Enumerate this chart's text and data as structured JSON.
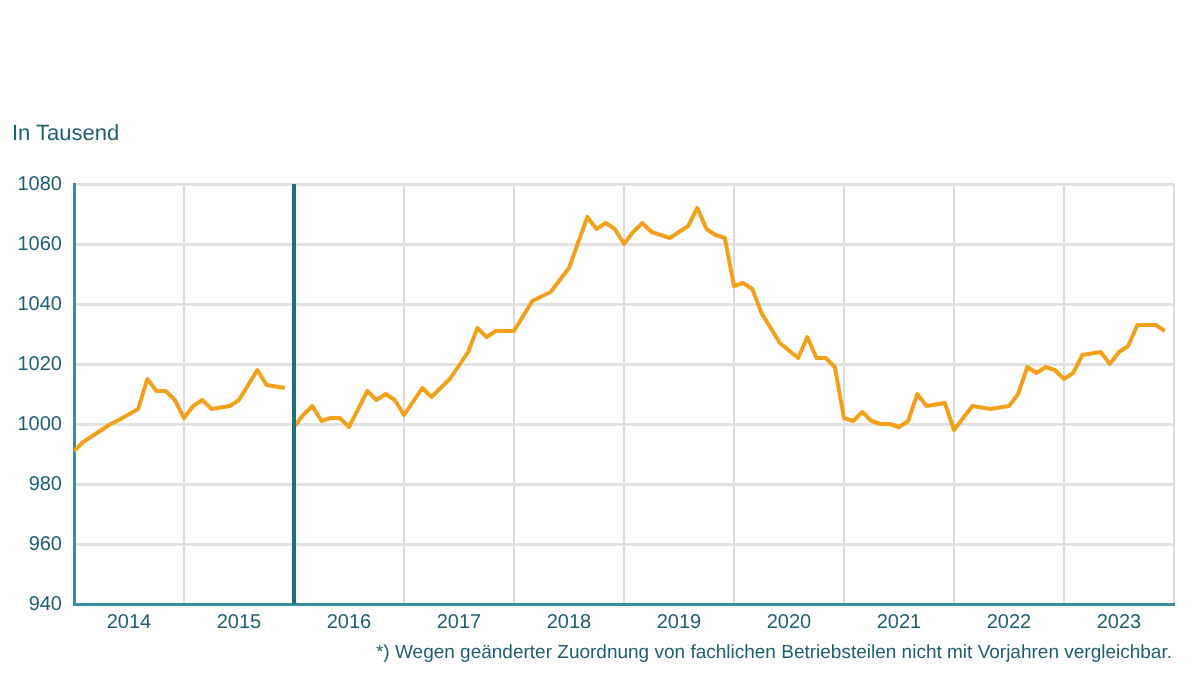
{
  "chart_data": {
    "type": "line",
    "ylabel": "In Tausend",
    "annotations": [
      "*) Wegen geänderter Zuordnung von fachlichen Betriebsteilen nicht mit Vorjahren vergleichbar."
    ],
    "xlim": [
      "2014-01",
      "2024-01"
    ],
    "xticks": [
      {
        "value": "2014-07",
        "label": "2014"
      },
      {
        "value": "2015-01",
        "label": null
      },
      {
        "value": "2015-07",
        "label": "2015"
      },
      {
        "value": "2016-01",
        "label": null
      },
      {
        "value": "2016-07",
        "label": "2016"
      },
      {
        "value": "2017-01",
        "label": null
      },
      {
        "value": "2017-07",
        "label": "2017"
      },
      {
        "value": "2018-01",
        "label": null
      },
      {
        "value": "2018-07",
        "label": "2018"
      },
      {
        "value": "2019-01",
        "label": null
      },
      {
        "value": "2019-07",
        "label": "2019"
      },
      {
        "value": "2020-01",
        "label": null
      },
      {
        "value": "2020-07",
        "label": "2020"
      },
      {
        "value": "2021-01",
        "label": null
      },
      {
        "value": "2021-07",
        "label": "2021"
      },
      {
        "value": "2022-01",
        "label": null
      },
      {
        "value": "2022-07",
        "label": "2022"
      },
      {
        "value": "2023-01",
        "label": null
      },
      {
        "value": "2023-07",
        "label": "2023"
      },
      {
        "value": "2024-01",
        "label": null
      }
    ],
    "ylim": [
      940,
      1080
    ],
    "yticks": [
      940,
      960,
      980,
      1000,
      1020,
      1040,
      1060,
      1080
    ],
    "grid": true,
    "legend": false,
    "ref_lines": [
      {
        "axis": "x",
        "value": "2016-01",
        "color": "#1e6e80"
      }
    ],
    "series": [
      {
        "color": "#f5a01a",
        "x": [
          "2014-01",
          "2014-02",
          "2014-05",
          "2014-06",
          "2014-08",
          "2014-09",
          "2014-10",
          "2014-11",
          "2014-12",
          "2015-01",
          "2015-02",
          "2015-03",
          "2015-04",
          "2015-06",
          "2015-07",
          "2015-09",
          "2015-10",
          "2015-12"
        ],
        "values": [
          991,
          994,
          1000,
          1001.5,
          1005,
          1015,
          1011,
          1011,
          1008,
          1002,
          1006,
          1008,
          1005,
          1006,
          1008,
          1018,
          1013,
          1012
        ]
      },
      {
        "color": "#f5a01a",
        "x": [
          "2016-01",
          "2016-02",
          "2016-03",
          "2016-04",
          "2016-05",
          "2016-06",
          "2016-07",
          "2016-09",
          "2016-10",
          "2016-11",
          "2016-12",
          "2017-01",
          "2017-03",
          "2017-04",
          "2017-05",
          "2017-06",
          "2017-08",
          "2017-09",
          "2017-10",
          "2017-11",
          "2018-01",
          "2018-03",
          "2018-05",
          "2018-07",
          "2018-09",
          "2018-10",
          "2018-11",
          "2018-12",
          "2019-01",
          "2019-02",
          "2019-03",
          "2019-04",
          "2019-06",
          "2019-07",
          "2019-08",
          "2019-09",
          "2019-10",
          "2019-11",
          "2019-12",
          "2020-01",
          "2020-02",
          "2020-03",
          "2020-04",
          "2020-05",
          "2020-06",
          "2020-08",
          "2020-09",
          "2020-10",
          "2020-11",
          "2020-12",
          "2021-01",
          "2021-02",
          "2021-03",
          "2021-04",
          "2021-05",
          "2021-06",
          "2021-07",
          "2021-08",
          "2021-09",
          "2021-10",
          "2021-12",
          "2022-01",
          "2022-03",
          "2022-05",
          "2022-07",
          "2022-08",
          "2022-09",
          "2022-10",
          "2022-11",
          "2022-12",
          "2023-01",
          "2023-02",
          "2023-03",
          "2023-05",
          "2023-06",
          "2023-07",
          "2023-08",
          "2023-09",
          "2023-11",
          "2023-12"
        ],
        "values": [
          999,
          1003,
          1006,
          1001,
          1002,
          1002,
          999,
          1011,
          1008,
          1010,
          1008,
          1003,
          1012,
          1009,
          1012,
          1015,
          1024,
          1032,
          1029,
          1031,
          1031,
          1041,
          1044,
          1052,
          1069,
          1065,
          1067,
          1065,
          1060,
          1064,
          1067,
          1064,
          1062,
          1064,
          1066,
          1072,
          1065,
          1063,
          1062,
          1046,
          1047,
          1045,
          1037,
          1032,
          1027,
          1022,
          1029,
          1022,
          1022,
          1019,
          1002,
          1001,
          1004,
          1001,
          1000,
          1000,
          999,
          1001,
          1010,
          1006,
          1007,
          998,
          1006,
          1005,
          1006,
          1010,
          1019,
          1017,
          1019,
          1018,
          1015,
          1017,
          1023,
          1024,
          1020,
          1024,
          1026,
          1033,
          1033,
          1031
        ]
      }
    ]
  }
}
